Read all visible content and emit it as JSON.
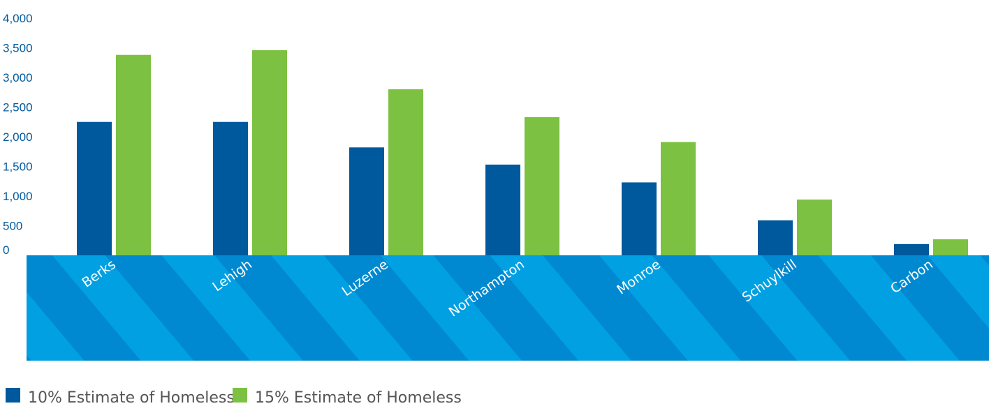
{
  "colors": {
    "series_10": "#00599c",
    "series_15": "#7cc142",
    "band_light": "#00a0e2",
    "band_dark": "#0089d0",
    "axis_text": "#00599c",
    "legend_text": "#555555"
  },
  "chart_data": {
    "type": "bar",
    "title": "",
    "xlabel": "",
    "ylabel": "",
    "ylim": [
      0,
      4000
    ],
    "yticks": [
      0,
      500,
      1000,
      1500,
      2000,
      2500,
      3000,
      3500,
      4000
    ],
    "ytick_labels": [
      "0",
      "500",
      "1,000",
      "1,500",
      "2,000",
      "2,500",
      "3,000",
      "3,500",
      "4,000"
    ],
    "grid": false,
    "legend_position": "bottom-left",
    "categories": [
      "Berks",
      "Lehigh",
      "Luzerne",
      "Northampton",
      "Monroe",
      "Schuylkill",
      "Carbon"
    ],
    "series": [
      {
        "name": "10% Estimate of Homeless",
        "color": "#00599c",
        "values": [
          2250,
          2250,
          1820,
          1530,
          1230,
          590,
          190
        ]
      },
      {
        "name": "15% Estimate of Homeless",
        "color": "#7cc142",
        "values": [
          3380,
          3460,
          2800,
          2330,
          1910,
          940,
          270
        ]
      }
    ]
  }
}
